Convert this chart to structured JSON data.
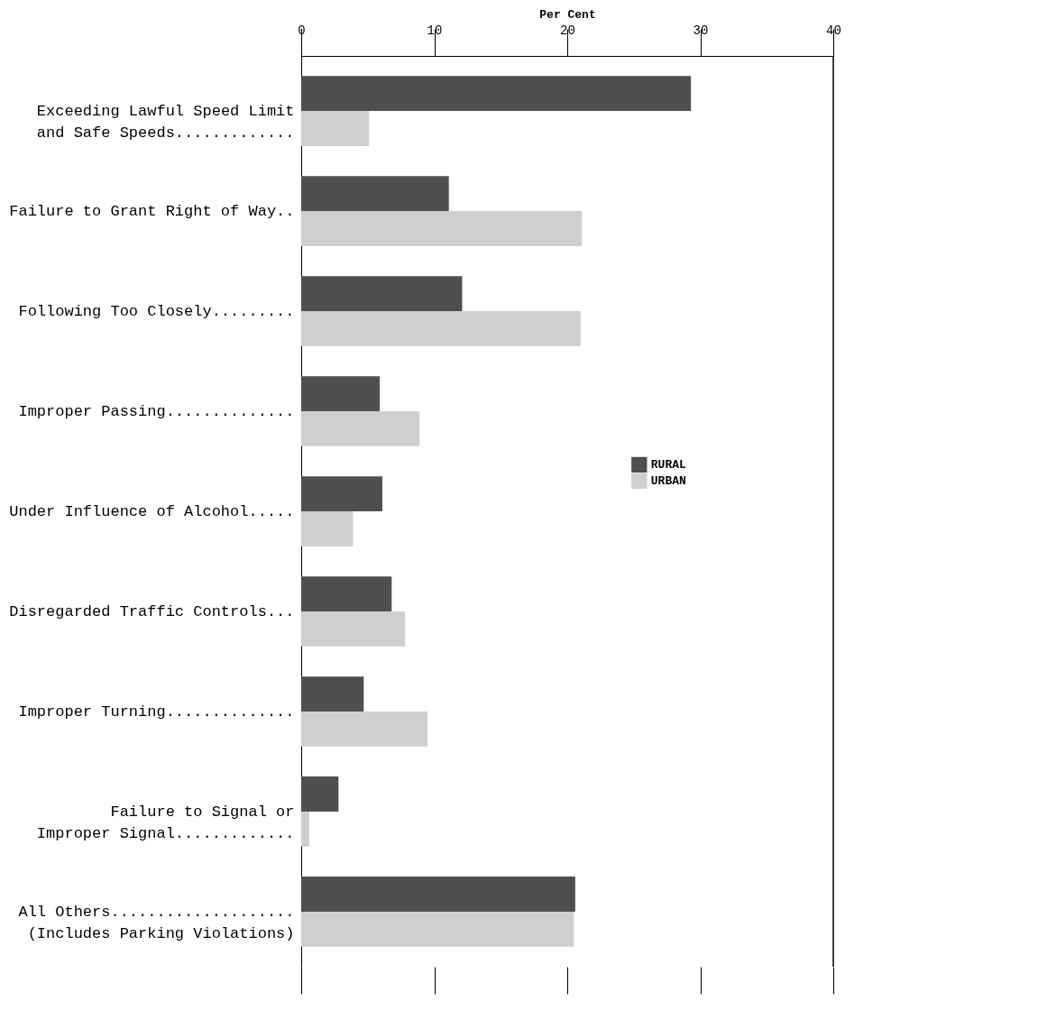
{
  "chart_data": {
    "type": "bar",
    "orientation": "horizontal",
    "xlabel": "Per Cent",
    "categories": [
      "Exceeding Lawful Speed Limit\n  and Safe Speeds.............",
      "Failure to Grant Right of Way..",
      "Following Too Closely.........",
      "Improper Passing..............",
      "Under Influence of Alcohol.....",
      "Disregarded Traffic Controls...",
      "Improper Turning..............",
      "Failure to Signal or\n  Improper Signal.............",
      "All Others....................\n  (Includes Parking Violations)"
    ],
    "series": [
      {
        "name": "RURAL",
        "color": "#4f4f4f",
        "values": [
          29.3,
          11.1,
          12.1,
          5.9,
          6.1,
          6.8,
          4.7,
          2.8,
          20.6
        ]
      },
      {
        "name": "URBAN",
        "color": "#cfcfcf",
        "values": [
          5.1,
          21.1,
          21.0,
          8.9,
          3.9,
          7.8,
          9.5,
          0.6,
          20.5
        ]
      }
    ],
    "xlim": [
      0,
      40
    ],
    "xticks": [
      0,
      10,
      20,
      30,
      40
    ],
    "grid": false,
    "legend": "right"
  }
}
